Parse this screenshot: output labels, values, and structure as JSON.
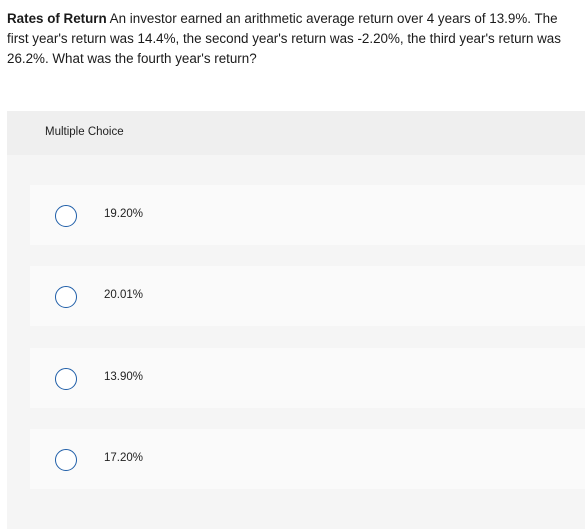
{
  "question": {
    "title": "Rates of Return",
    "body": " An investor earned an arithmetic average return over 4 years of 13.9%. The first year's return was 14.4%, the second year's return was -2.20%, the third year's return was 26.2%. What was the fourth year's return?"
  },
  "multiple_choice": {
    "label": "Multiple Choice",
    "options": [
      {
        "label": "19.20%"
      },
      {
        "label": "20.01%"
      },
      {
        "label": "13.90%"
      },
      {
        "label": "17.20%"
      }
    ]
  },
  "colors": {
    "radio_border": "#1f5ea8",
    "panel_bg": "#f5f5f5",
    "option_bg": "#fafafa"
  }
}
